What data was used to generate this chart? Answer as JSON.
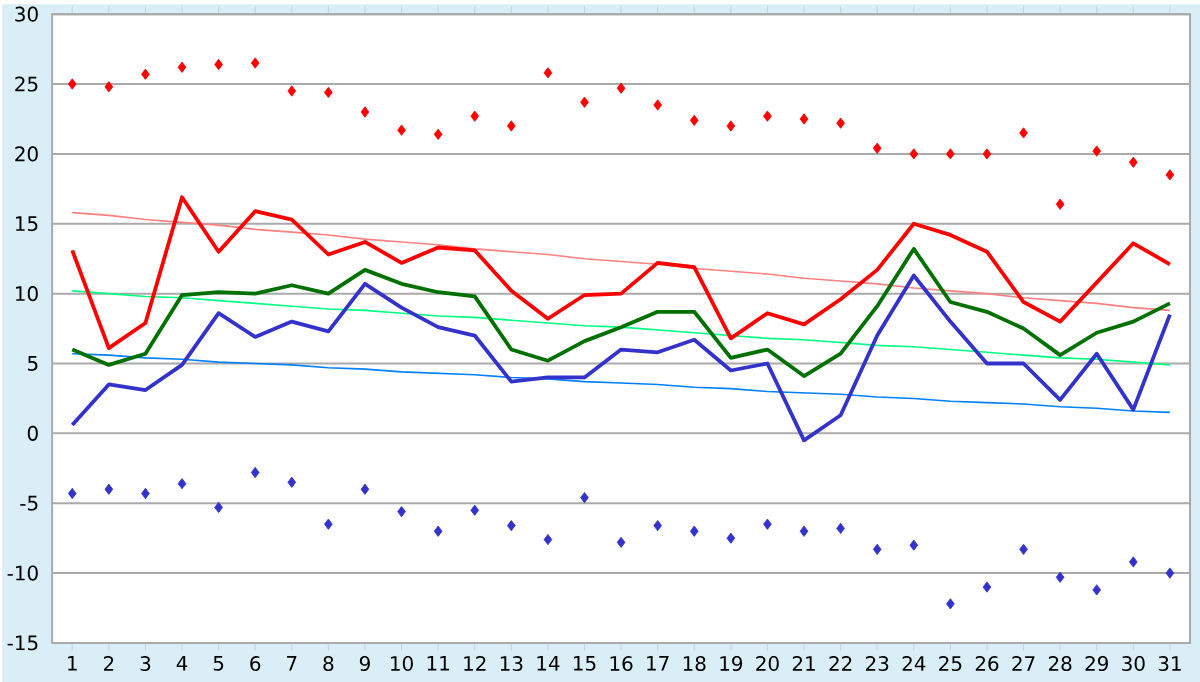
{
  "chart_data": {
    "type": "line",
    "x": [
      1,
      2,
      3,
      4,
      5,
      6,
      7,
      8,
      9,
      10,
      11,
      12,
      13,
      14,
      15,
      16,
      17,
      18,
      19,
      20,
      21,
      22,
      23,
      24,
      25,
      26,
      27,
      28,
      29,
      30,
      31
    ],
    "xlim": [
      0.45,
      31.55
    ],
    "ylim": [
      -15,
      30
    ],
    "xticks": [
      1,
      2,
      3,
      4,
      5,
      6,
      7,
      8,
      9,
      10,
      11,
      12,
      13,
      14,
      15,
      16,
      17,
      18,
      19,
      20,
      21,
      22,
      23,
      24,
      25,
      26,
      27,
      28,
      29,
      30,
      31
    ],
    "yticks": [
      -15,
      -10,
      -5,
      0,
      5,
      10,
      15,
      20,
      25,
      30
    ],
    "grid": "y",
    "series": [
      {
        "type": "scatter",
        "marker": "diamond",
        "color": "#ff0000",
        "values": [
          25.0,
          24.8,
          25.7,
          26.2,
          26.4,
          26.5,
          24.5,
          24.4,
          23.0,
          21.7,
          21.4,
          22.7,
          22.0,
          25.8,
          23.7,
          24.7,
          23.5,
          22.4,
          22.0,
          22.7,
          22.5,
          22.2,
          20.4,
          20.0,
          20.0,
          20.0,
          21.5,
          16.4,
          20.2,
          19.4,
          18.5
        ]
      },
      {
        "type": "scatter",
        "marker": "diamond",
        "color": "#3333cc",
        "values": [
          -4.3,
          -4.0,
          -4.3,
          -3.6,
          -5.3,
          -2.8,
          -3.5,
          -6.5,
          -4.0,
          -5.6,
          -7.0,
          -5.5,
          -6.6,
          -7.6,
          -4.6,
          -7.8,
          -6.6,
          -7.0,
          -7.5,
          -6.5,
          -7.0,
          -6.8,
          -8.3,
          -8.0,
          -12.2,
          -11.0,
          -8.3,
          -10.3,
          -11.2,
          -9.2,
          -10.0
        ]
      },
      {
        "type": "line",
        "line_style": "solid",
        "color": "#ff8080",
        "values": [
          15.8,
          15.6,
          15.3,
          15.1,
          14.9,
          14.6,
          14.4,
          14.2,
          13.9,
          13.7,
          13.5,
          13.2,
          13.0,
          12.8,
          12.5,
          12.3,
          12.1,
          11.8,
          11.6,
          11.4,
          11.1,
          10.9,
          10.7,
          10.4,
          10.2,
          10.0,
          9.7,
          9.5,
          9.3,
          9.0,
          8.8
        ]
      },
      {
        "type": "line",
        "line_style": "solid",
        "color": "#00ff80",
        "values": [
          10.2,
          10.0,
          9.8,
          9.7,
          9.5,
          9.3,
          9.1,
          8.9,
          8.8,
          8.6,
          8.4,
          8.3,
          8.1,
          7.9,
          7.7,
          7.6,
          7.4,
          7.2,
          7.0,
          6.8,
          6.7,
          6.5,
          6.3,
          6.2,
          6.0,
          5.8,
          5.6,
          5.4,
          5.3,
          5.1,
          4.9
        ]
      },
      {
        "type": "line",
        "line_style": "solid",
        "color": "#0080ff",
        "values": [
          5.7,
          5.6,
          5.4,
          5.3,
          5.1,
          5.0,
          4.9,
          4.7,
          4.6,
          4.4,
          4.3,
          4.2,
          4.0,
          3.9,
          3.7,
          3.6,
          3.5,
          3.3,
          3.2,
          3.0,
          2.9,
          2.8,
          2.6,
          2.5,
          2.3,
          2.2,
          2.1,
          1.9,
          1.8,
          1.6,
          1.5
        ]
      },
      {
        "color": "#ff0000",
        "values": [
          13.1,
          6.1,
          7.9,
          16.9,
          13.0,
          15.9,
          15.3,
          12.8,
          13.7,
          12.2,
          13.3,
          13.1,
          10.2,
          8.2,
          9.9,
          10.0,
          12.2,
          11.9,
          6.8,
          8.6,
          7.8,
          9.6,
          11.7,
          15.0,
          14.2,
          13.0,
          9.4,
          8.0,
          10.8,
          13.6,
          12.1
        ]
      },
      {
        "color": "#007000",
        "values": [
          6.0,
          4.9,
          5.7,
          9.9,
          10.1,
          10.0,
          10.6,
          10.0,
          11.7,
          10.7,
          10.1,
          9.8,
          6.0,
          5.2,
          6.6,
          7.6,
          8.7,
          8.7,
          5.4,
          6.0,
          4.1,
          5.7,
          9.1,
          13.2,
          9.4,
          8.7,
          7.5,
          5.6,
          7.2,
          8.0,
          9.3
        ]
      },
      {
        "color": "#3333cc",
        "values": [
          0.6,
          3.5,
          3.1,
          4.9,
          8.6,
          6.9,
          8.0,
          7.3,
          10.7,
          9.0,
          7.6,
          7.0,
          3.7,
          4.0,
          4.0,
          6.0,
          5.8,
          6.7,
          4.5,
          5.0,
          -0.5,
          1.3,
          7.0,
          11.3,
          8.0,
          5.0,
          5.0,
          2.4,
          5.7,
          1.7,
          8.5
        ]
      }
    ]
  }
}
